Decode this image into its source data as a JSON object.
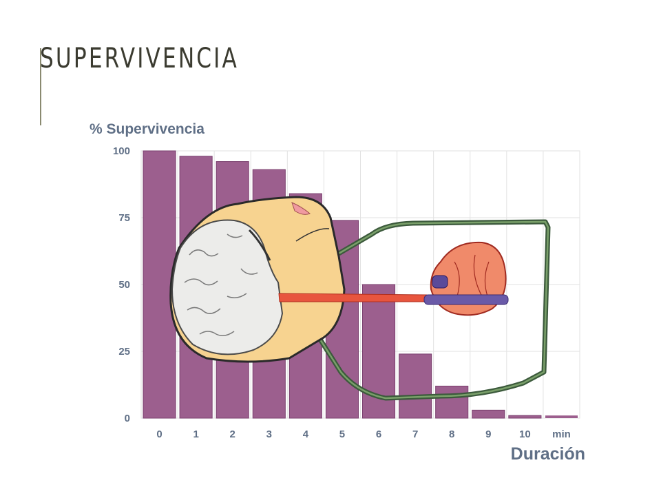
{
  "slide": {
    "title": "SUPERVIVENCIA"
  },
  "chart_data": {
    "type": "bar",
    "ylabel": "% Supervivencia",
    "xlabel": "Duración",
    "x_unit": "min",
    "categories": [
      "0",
      "1",
      "2",
      "3",
      "4",
      "5",
      "6",
      "7",
      "8",
      "9",
      "10"
    ],
    "values": [
      100,
      98,
      96,
      93,
      84,
      74,
      50,
      24,
      12,
      3,
      1
    ],
    "ylim": [
      0,
      100
    ],
    "yticks": [
      0,
      25,
      50,
      75,
      100
    ],
    "grid": true,
    "colors": {
      "bar": "#9c5f8e",
      "grid": "#e2e2e2",
      "text": "#5f6f86"
    }
  }
}
